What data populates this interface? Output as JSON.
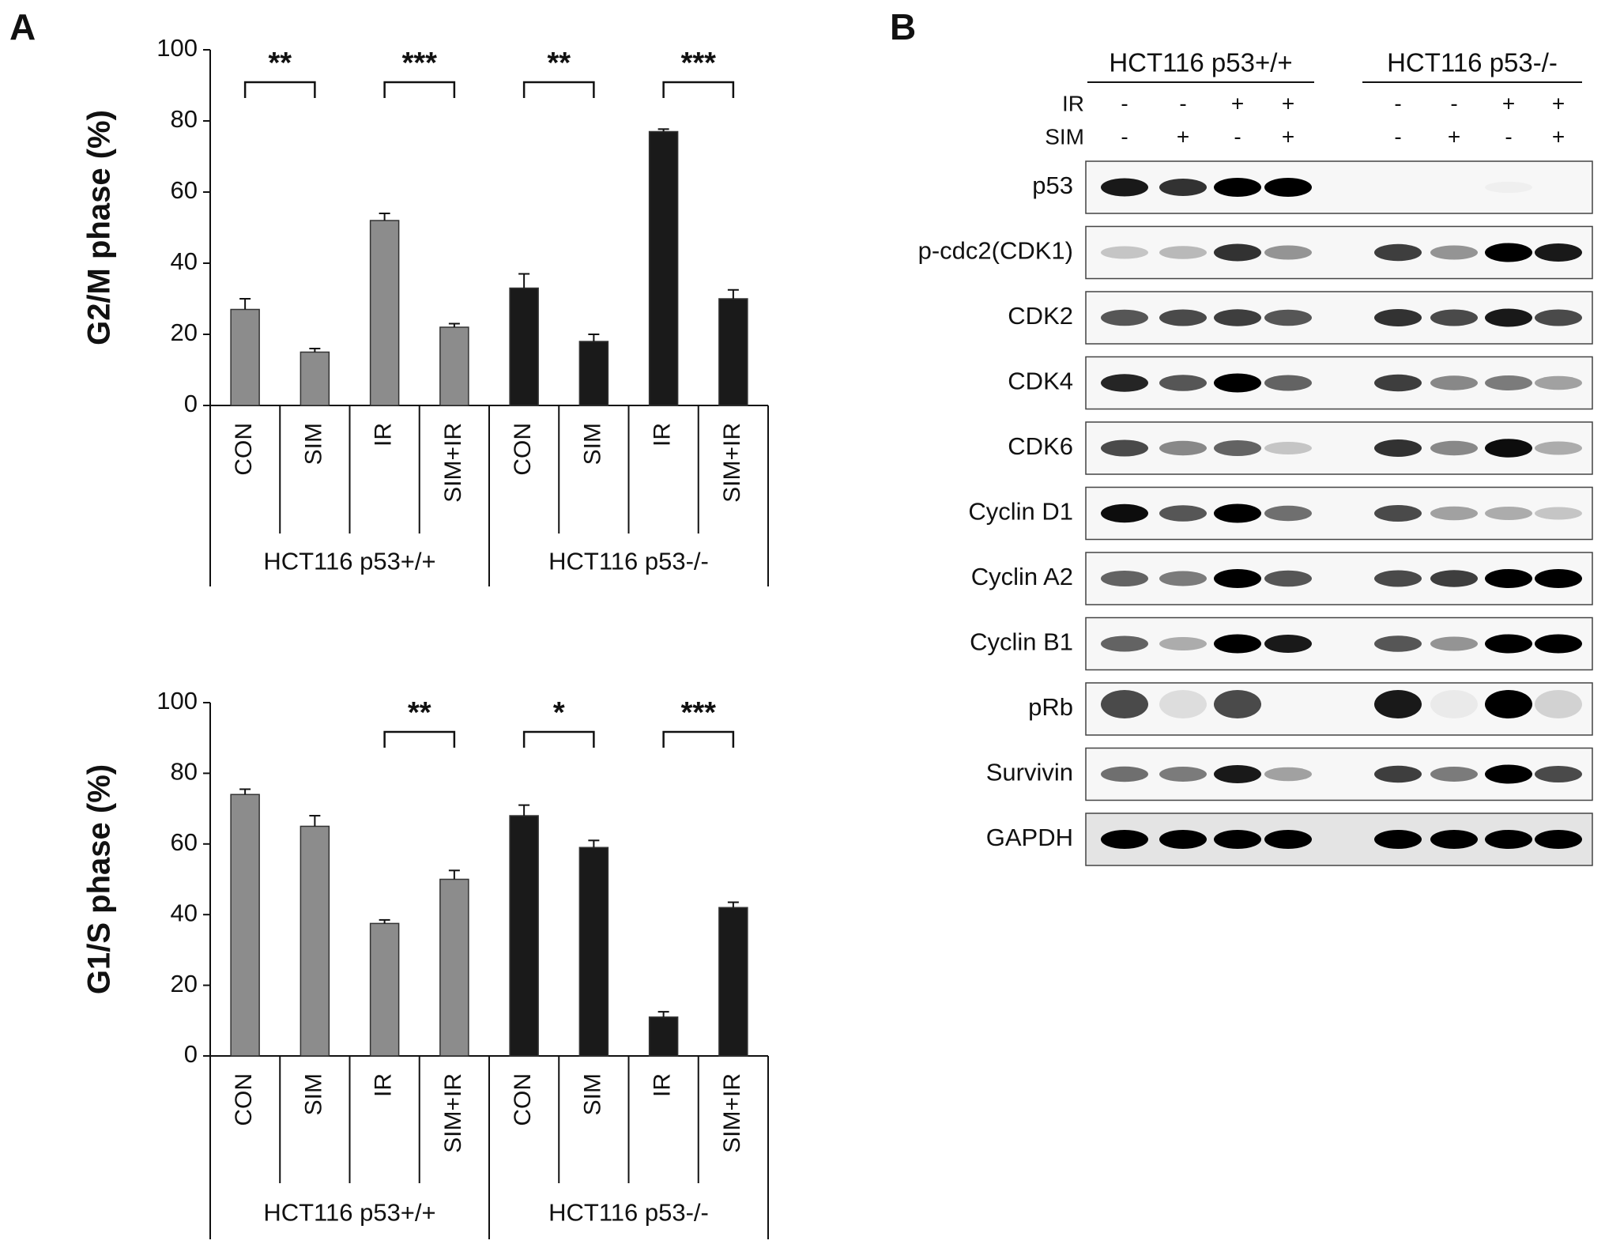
{
  "panels": {
    "a": "A",
    "b": "B"
  },
  "chart_data": [
    {
      "type": "bar",
      "ylabel": "G2/M phase (%)",
      "categories": [
        "CON",
        "SIM",
        "IR",
        "SIM+IR",
        "CON",
        "SIM",
        "IR",
        "SIM+IR"
      ],
      "values": [
        27,
        15,
        52,
        22,
        33,
        18,
        77,
        30
      ],
      "errors": [
        3,
        1,
        2,
        1,
        4,
        2,
        0.7,
        2.5
      ],
      "colors": [
        "#8c8c8c",
        "#8c8c8c",
        "#8c8c8c",
        "#8c8c8c",
        "#1a1a1a",
        "#1a1a1a",
        "#1a1a1a",
        "#1a1a1a"
      ],
      "groups": [
        "HCT116 p53+/+",
        "HCT116 p53-/-"
      ],
      "significance": [
        "**",
        "***",
        "**",
        "***"
      ],
      "ylim": [
        0,
        100
      ],
      "yticks": [
        0,
        20,
        40,
        60,
        80,
        100
      ]
    },
    {
      "type": "bar",
      "ylabel": "G1/S phase (%)",
      "categories": [
        "CON",
        "SIM",
        "IR",
        "SIM+IR",
        "CON",
        "SIM",
        "IR",
        "SIM+IR"
      ],
      "values": [
        74,
        65,
        37.5,
        50,
        68,
        59,
        11,
        42
      ],
      "errors": [
        1.5,
        3,
        1,
        2.5,
        3,
        2,
        1.5,
        1.5
      ],
      "colors": [
        "#8c8c8c",
        "#8c8c8c",
        "#8c8c8c",
        "#8c8c8c",
        "#1a1a1a",
        "#1a1a1a",
        "#1a1a1a",
        "#1a1a1a"
      ],
      "groups": [
        "HCT116 p53+/+",
        "HCT116 p53-/-"
      ],
      "significance": [
        null,
        "**",
        "*",
        "***"
      ],
      "ylim": [
        0,
        100
      ],
      "yticks": [
        0,
        20,
        40,
        60,
        80,
        100
      ]
    }
  ],
  "blot": {
    "groups": [
      "HCT116 p53+/+",
      "HCT116 p53-/-"
    ],
    "treatments": [
      {
        "name": "IR",
        "marks": [
          "-",
          "-",
          "+",
          "+",
          "-",
          "-",
          "+",
          "+"
        ]
      },
      {
        "name": "SIM",
        "marks": [
          "-",
          "+",
          "-",
          "+",
          "-",
          "+",
          "-",
          "+"
        ]
      }
    ],
    "proteins": [
      "p53",
      "p-cdc2(CDK1)",
      "CDK2",
      "CDK4",
      "CDK6",
      "Cyclin D1",
      "Cyclin A2",
      "Cyclin B1",
      "pRb",
      "Survivin",
      "GAPDH"
    ]
  }
}
